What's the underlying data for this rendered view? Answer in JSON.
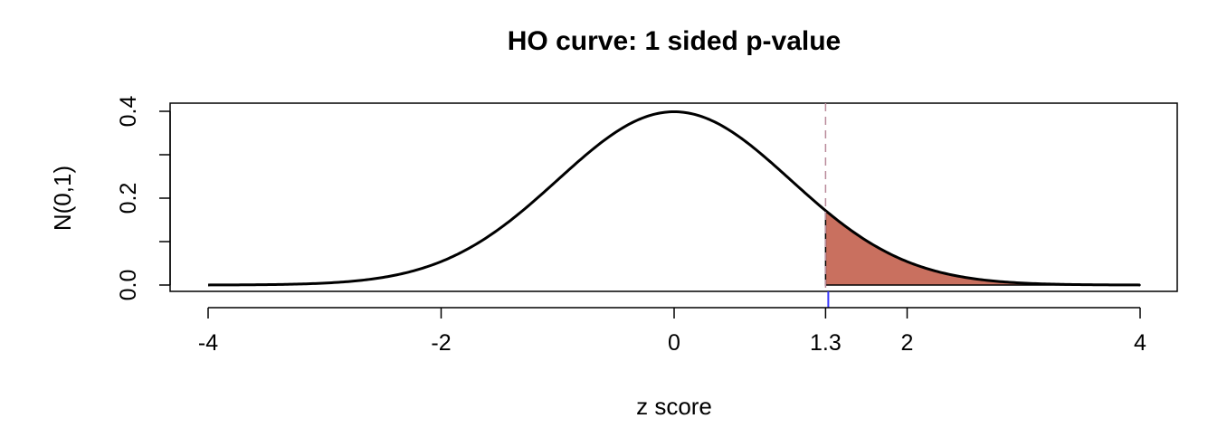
{
  "chart_data": {
    "type": "area",
    "title": "HO curve: 1 sided p-value",
    "xlabel": "z score",
    "ylabel": "N(0,1)",
    "xlim": [
      -4,
      4
    ],
    "ylim": [
      0,
      0.4
    ],
    "x_ticks": [
      -4,
      -2,
      0,
      1.3,
      2,
      4
    ],
    "x_tick_labels": [
      "-4",
      "-2",
      "0",
      "1.3",
      "2",
      "4"
    ],
    "y_ticks": [
      0.0,
      0.1,
      0.2,
      0.3,
      0.4
    ],
    "y_tick_labels": [
      "0.0",
      "",
      "0.2",
      "",
      "0.4"
    ],
    "series": [
      {
        "type": "line",
        "distribution": "standard normal density",
        "x_range": [
          -4,
          4
        ],
        "x": [
          -4,
          -3.5,
          -3,
          -2.5,
          -2,
          -1.5,
          -1,
          -0.5,
          0,
          0.5,
          1,
          1.3,
          1.5,
          2,
          2.5,
          3,
          3.5,
          4
        ],
        "values": [
          0.0001,
          0.0009,
          0.0044,
          0.0175,
          0.054,
          0.1295,
          0.242,
          0.3521,
          0.3989,
          0.3521,
          0.242,
          0.1714,
          0.1295,
          0.054,
          0.0175,
          0.0044,
          0.0009,
          0.0001
        ],
        "color": "#000000"
      }
    ],
    "shaded_region": {
      "from": 1.3,
      "to": 4,
      "color": "#c9705f"
    },
    "vertical_lines": [
      {
        "x": 1.3,
        "style": "dashed",
        "color": "#b98a9a"
      },
      {
        "x": 1.3,
        "style": "solid",
        "color": "#3a3aff",
        "segment": "below-axis"
      }
    ],
    "grid": false,
    "legend": "none"
  }
}
